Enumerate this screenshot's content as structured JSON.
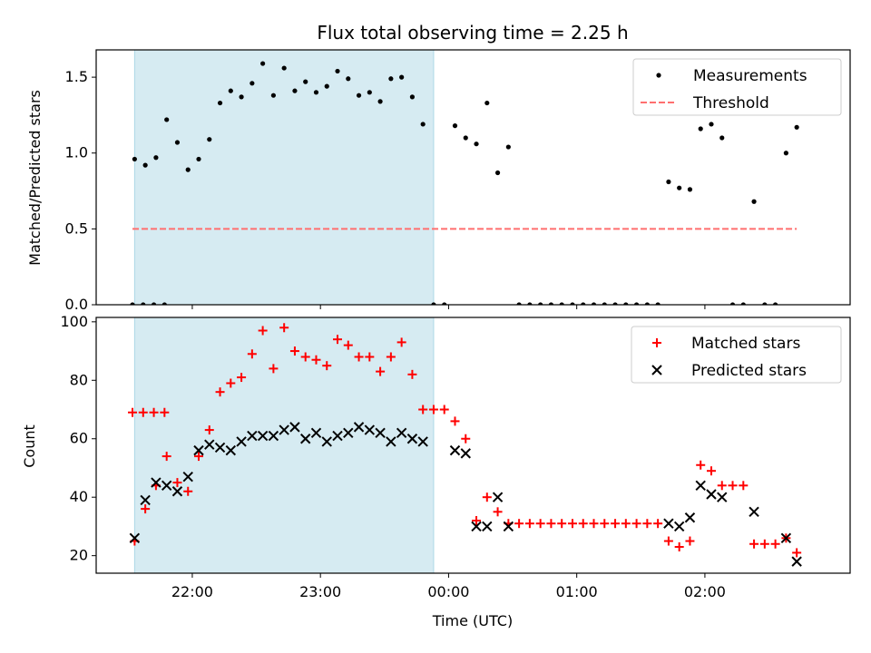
{
  "title": "Flux total observing time = 2.25 h",
  "colors": {
    "measurement": "#000000",
    "threshold": "#ff6f6f",
    "matched": "#ff0000",
    "predicted": "#000000",
    "highlight": "#add8e6"
  },
  "chart_data": [
    {
      "type": "scatter",
      "panel": "top",
      "title": "Flux total observing time = 2.25 h",
      "xlabel": "",
      "ylabel": "Matched/Predicted stars",
      "xlim": [
        "21:15",
        "03:08"
      ],
      "ylim": [
        0,
        1.68
      ],
      "yticks": [
        0.0,
        0.5,
        1.0,
        1.5
      ],
      "ytick_labels": [
        "0.0",
        "0.5",
        "1.0",
        "1.5"
      ],
      "legend_placement": "upper right",
      "legend": [
        {
          "key": "measurement",
          "label": "Measurements"
        },
        {
          "key": "threshold",
          "label": "Threshold"
        }
      ],
      "highlight_span": [
        "21:33",
        "23:53"
      ],
      "threshold": {
        "value": 0.5,
        "x_range": [
          "21:32",
          "02:43"
        ]
      },
      "series": [
        {
          "name": "Measurements",
          "marker": "dot",
          "points": [
            [
              "21:32",
              0
            ],
            [
              "21:37",
              0
            ],
            [
              "21:42",
              0
            ],
            [
              "21:47",
              0
            ],
            [
              "21:33",
              0.96
            ],
            [
              "21:38",
              0.92
            ],
            [
              "21:43",
              0.97
            ],
            [
              "21:48",
              1.22
            ],
            [
              "21:53",
              1.07
            ],
            [
              "21:58",
              0.89
            ],
            [
              "22:03",
              0.96
            ],
            [
              "22:08",
              1.09
            ],
            [
              "22:13",
              1.33
            ],
            [
              "22:18",
              1.41
            ],
            [
              "22:23",
              1.37
            ],
            [
              "22:28",
              1.46
            ],
            [
              "22:33",
              1.59
            ],
            [
              "22:38",
              1.38
            ],
            [
              "22:43",
              1.56
            ],
            [
              "22:48",
              1.41
            ],
            [
              "22:53",
              1.47
            ],
            [
              "22:58",
              1.4
            ],
            [
              "23:03",
              1.44
            ],
            [
              "23:08",
              1.54
            ],
            [
              "23:13",
              1.49
            ],
            [
              "23:18",
              1.38
            ],
            [
              "23:23",
              1.4
            ],
            [
              "23:28",
              1.34
            ],
            [
              "23:33",
              1.49
            ],
            [
              "23:38",
              1.5
            ],
            [
              "23:43",
              1.37
            ],
            [
              "23:48",
              1.19
            ],
            [
              "23:53",
              0
            ],
            [
              "23:58",
              0
            ],
            [
              "00:03",
              1.18
            ],
            [
              "00:08",
              1.1
            ],
            [
              "00:13",
              1.06
            ],
            [
              "00:18",
              1.33
            ],
            [
              "00:23",
              0.87
            ],
            [
              "00:28",
              1.04
            ],
            [
              "00:33",
              0
            ],
            [
              "00:38",
              0
            ],
            [
              "00:43",
              0
            ],
            [
              "00:48",
              0
            ],
            [
              "00:53",
              0
            ],
            [
              "00:58",
              0
            ],
            [
              "01:03",
              0
            ],
            [
              "01:08",
              0
            ],
            [
              "01:13",
              0
            ],
            [
              "01:18",
              0
            ],
            [
              "01:23",
              0
            ],
            [
              "01:28",
              0
            ],
            [
              "01:33",
              0
            ],
            [
              "01:38",
              0
            ],
            [
              "01:43",
              0.81
            ],
            [
              "01:48",
              0.77
            ],
            [
              "01:53",
              0.76
            ],
            [
              "01:58",
              1.16
            ],
            [
              "02:03",
              1.19
            ],
            [
              "02:08",
              1.1
            ],
            [
              "02:13",
              0
            ],
            [
              "02:18",
              0
            ],
            [
              "02:23",
              0.68
            ],
            [
              "02:28",
              0
            ],
            [
              "02:33",
              0
            ],
            [
              "02:38",
              1.0
            ],
            [
              "02:43",
              1.17
            ]
          ]
        }
      ]
    },
    {
      "type": "scatter",
      "panel": "bottom",
      "xlabel": "Time (UTC)",
      "ylabel": "Count",
      "xlim": [
        "21:15",
        "03:08"
      ],
      "ylim": [
        14,
        101.5
      ],
      "yticks": [
        20,
        40,
        60,
        80,
        100
      ],
      "ytick_labels": [
        "20",
        "40",
        "60",
        "80",
        "100"
      ],
      "xticks": [
        "22:00",
        "23:00",
        "00:00",
        "01:00",
        "02:00"
      ],
      "xtick_labels": [
        "22:00",
        "23:00",
        "00:00",
        "01:00",
        "02:00"
      ],
      "legend_placement": "upper right",
      "legend": [
        {
          "key": "matched",
          "label": "Matched stars"
        },
        {
          "key": "predicted",
          "label": "Predicted stars"
        }
      ],
      "highlight_span": [
        "21:33",
        "23:53"
      ],
      "series": [
        {
          "name": "Matched stars",
          "marker": "plus",
          "points": [
            [
              "21:32",
              69
            ],
            [
              "21:37",
              69
            ],
            [
              "21:42",
              69
            ],
            [
              "21:47",
              69
            ],
            [
              "21:33",
              25
            ],
            [
              "21:38",
              36
            ],
            [
              "21:43",
              44
            ],
            [
              "21:48",
              54
            ],
            [
              "21:53",
              45
            ],
            [
              "21:58",
              42
            ],
            [
              "22:03",
              54
            ],
            [
              "22:08",
              63
            ],
            [
              "22:13",
              76
            ],
            [
              "22:18",
              79
            ],
            [
              "22:23",
              81
            ],
            [
              "22:28",
              89
            ],
            [
              "22:33",
              97
            ],
            [
              "22:38",
              84
            ],
            [
              "22:43",
              98
            ],
            [
              "22:48",
              90
            ],
            [
              "22:53",
              88
            ],
            [
              "22:58",
              87
            ],
            [
              "23:03",
              85
            ],
            [
              "23:08",
              94
            ],
            [
              "23:13",
              92
            ],
            [
              "23:18",
              88
            ],
            [
              "23:23",
              88
            ],
            [
              "23:28",
              83
            ],
            [
              "23:33",
              88
            ],
            [
              "23:38",
              93
            ],
            [
              "23:43",
              82
            ],
            [
              "23:48",
              70
            ],
            [
              "23:53",
              70
            ],
            [
              "23:58",
              70
            ],
            [
              "00:03",
              66
            ],
            [
              "00:08",
              60
            ],
            [
              "00:13",
              32
            ],
            [
              "00:18",
              40
            ],
            [
              "00:23",
              35
            ],
            [
              "00:28",
              31
            ],
            [
              "00:33",
              31
            ],
            [
              "00:38",
              31
            ],
            [
              "00:43",
              31
            ],
            [
              "00:48",
              31
            ],
            [
              "00:53",
              31
            ],
            [
              "00:58",
              31
            ],
            [
              "01:03",
              31
            ],
            [
              "01:08",
              31
            ],
            [
              "01:13",
              31
            ],
            [
              "01:18",
              31
            ],
            [
              "01:23",
              31
            ],
            [
              "01:28",
              31
            ],
            [
              "01:33",
              31
            ],
            [
              "01:38",
              31
            ],
            [
              "01:43",
              25
            ],
            [
              "01:48",
              23
            ],
            [
              "01:53",
              25
            ],
            [
              "01:58",
              51
            ],
            [
              "02:03",
              49
            ],
            [
              "02:08",
              44
            ],
            [
              "02:13",
              44
            ],
            [
              "02:18",
              44
            ],
            [
              "02:23",
              24
            ],
            [
              "02:28",
              24
            ],
            [
              "02:33",
              24
            ],
            [
              "02:38",
              26
            ],
            [
              "02:43",
              21
            ]
          ]
        },
        {
          "name": "Predicted stars",
          "marker": "x",
          "points": [
            [
              "21:33",
              26
            ],
            [
              "21:38",
              39
            ],
            [
              "21:43",
              45
            ],
            [
              "21:48",
              44
            ],
            [
              "21:53",
              42
            ],
            [
              "21:58",
              47
            ],
            [
              "22:03",
              56
            ],
            [
              "22:08",
              58
            ],
            [
              "22:13",
              57
            ],
            [
              "22:18",
              56
            ],
            [
              "22:23",
              59
            ],
            [
              "22:28",
              61
            ],
            [
              "22:33",
              61
            ],
            [
              "22:38",
              61
            ],
            [
              "22:43",
              63
            ],
            [
              "22:48",
              64
            ],
            [
              "22:53",
              60
            ],
            [
              "22:58",
              62
            ],
            [
              "23:03",
              59
            ],
            [
              "23:08",
              61
            ],
            [
              "23:13",
              62
            ],
            [
              "23:18",
              64
            ],
            [
              "23:23",
              63
            ],
            [
              "23:28",
              62
            ],
            [
              "23:33",
              59
            ],
            [
              "23:38",
              62
            ],
            [
              "23:43",
              60
            ],
            [
              "23:48",
              59
            ],
            [
              "00:03",
              56
            ],
            [
              "00:08",
              55
            ],
            [
              "00:13",
              30
            ],
            [
              "00:18",
              30
            ],
            [
              "00:23",
              40
            ],
            [
              "00:28",
              30
            ],
            [
              "01:43",
              31
            ],
            [
              "01:48",
              30
            ],
            [
              "01:53",
              33
            ],
            [
              "01:58",
              44
            ],
            [
              "02:03",
              41
            ],
            [
              "02:08",
              40
            ],
            [
              "02:23",
              35
            ],
            [
              "02:38",
              26
            ],
            [
              "02:43",
              18
            ]
          ]
        }
      ]
    }
  ]
}
